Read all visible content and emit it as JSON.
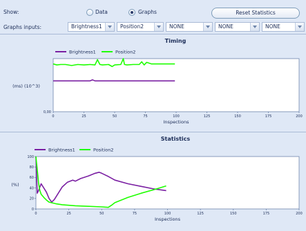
{
  "controls": {
    "show_label": "Show:",
    "option_data": "Data",
    "option_graphs": "Graphs",
    "selected": "graphs",
    "reset_button": "Reset Statistics",
    "inputs_label": "Graphs inputs:",
    "combos": [
      "Brightness1",
      "Position2",
      "NONE",
      "NONE",
      "NONE"
    ]
  },
  "colors": {
    "purple": "#7a1fa2",
    "green": "#1eff00",
    "plot_bg": "#ffffff",
    "panel_bg": "#dfe8f6"
  },
  "chart_data": [
    {
      "type": "line",
      "title": "Timing",
      "xlabel": "Inspections",
      "ylabel": "(ms) (10^3)",
      "xlim": [
        0,
        200
      ],
      "x_ticks": [
        "0",
        "25",
        "50",
        "75",
        "100",
        "125",
        "150",
        "175",
        "200"
      ],
      "y_ticks": [
        "0,00"
      ],
      "legend_position": "top-left",
      "series": [
        {
          "name": "Brightness1",
          "x": [
            0,
            10,
            20,
            30,
            32,
            34,
            36,
            40,
            50,
            60,
            70,
            80,
            90,
            99
          ],
          "y": [
            0.58,
            0.58,
            0.58,
            0.58,
            0.6,
            0.58,
            0.58,
            0.58,
            0.58,
            0.58,
            0.58,
            0.58,
            0.58,
            0.58
          ]
        },
        {
          "name": "Position2",
          "x": [
            0,
            3,
            6,
            10,
            15,
            20,
            25,
            30,
            34,
            36,
            38,
            40,
            45,
            48,
            50,
            55,
            57,
            58,
            60,
            65,
            70,
            72,
            74,
            76,
            80,
            90,
            99
          ],
          "y": [
            0.9,
            0.88,
            0.89,
            0.89,
            0.87,
            0.89,
            0.88,
            0.89,
            0.88,
            0.98,
            0.89,
            0.88,
            0.89,
            0.85,
            0.88,
            0.89,
            1.0,
            0.89,
            0.88,
            0.89,
            0.89,
            0.94,
            0.88,
            0.93,
            0.9,
            0.9,
            0.9
          ]
        }
      ]
    },
    {
      "type": "line",
      "title": "Statistics",
      "xlabel": "Inspections",
      "ylabel": "(%)",
      "xlim": [
        0,
        200
      ],
      "ylim": [
        0,
        100
      ],
      "x_ticks": [
        "0",
        "25",
        "50",
        "75",
        "100",
        "125",
        "150",
        "175",
        "200"
      ],
      "y_ticks": [
        "0",
        "20",
        "40",
        "60",
        "80",
        "100"
      ],
      "legend_position": "top-left",
      "series": [
        {
          "name": "Brightness1",
          "x": [
            0,
            1,
            2,
            4,
            6,
            8,
            10,
            12,
            14,
            17,
            20,
            24,
            28,
            30,
            34,
            40,
            45,
            48,
            50,
            55,
            60,
            70,
            80,
            90,
            99
          ],
          "y": [
            100,
            30,
            35,
            48,
            40,
            32,
            20,
            13,
            18,
            30,
            42,
            51,
            55,
            53,
            58,
            63,
            68,
            70,
            68,
            62,
            55,
            48,
            43,
            38,
            35
          ]
        },
        {
          "name": "Position2",
          "x": [
            0,
            1,
            2,
            3,
            4,
            6,
            8,
            10,
            15,
            20,
            30,
            40,
            50,
            55,
            58,
            60,
            70,
            80,
            90,
            99
          ],
          "y": [
            100,
            75,
            50,
            35,
            28,
            22,
            17,
            13,
            10,
            8,
            6,
            5,
            4,
            3,
            8,
            12,
            22,
            30,
            37,
            44
          ]
        }
      ]
    }
  ]
}
